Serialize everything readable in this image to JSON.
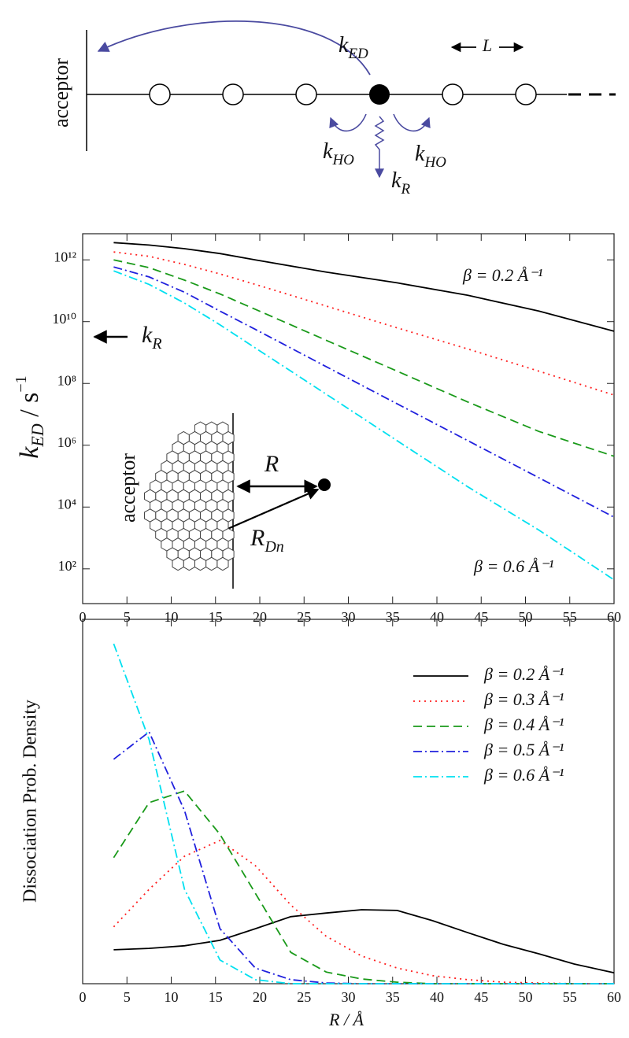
{
  "diagram": {
    "acceptor": "acceptor",
    "k_ED": {
      "symbol": "k",
      "subscript": "ED"
    },
    "L": "L",
    "k_HO_left": {
      "symbol": "k",
      "subscript": "HO"
    },
    "k_HO_right": {
      "symbol": "k",
      "subscript": "HO"
    },
    "k_R": {
      "symbol": "k",
      "subscript": "R"
    }
  },
  "chart_data": [
    {
      "type": "line",
      "log_y": true,
      "legend": false,
      "y_label": {
        "symbol": "k",
        "subscript": "ED",
        "rest": " / s",
        "superscript": "−1"
      },
      "k_R_marker": {
        "symbol": "k",
        "subscript": "R"
      },
      "inset": {
        "acceptor": "acceptor",
        "R": "R",
        "R_Dn": {
          "symbol": "R",
          "subscript": "Dn"
        }
      },
      "annotations": [
        "β = 0.2 Å⁻¹",
        "β = 0.6 Å⁻¹"
      ],
      "x": [
        3.5,
        7.5,
        11.5,
        15.5,
        19.5,
        27.5,
        35.5,
        43.5,
        51.5,
        60
      ],
      "series": [
        {
          "color": "#000000",
          "linestyle": "solid",
          "values": [
            3600000000000.0,
            3000000000000.0,
            2300000000000.0,
            1600000000000.0,
            1000000000000.0,
            400000000000.0,
            180000000000.0,
            71000000000.0,
            22000000000.0,
            4900000000.0
          ]
        },
        {
          "color": "#ff2020",
          "linestyle": "dotted",
          "values": [
            1800000000000.0,
            1300000000000.0,
            710000000000.0,
            350000000000.0,
            160000000000.0,
            32000000000.0,
            6300000000.0,
            1300000000.0,
            250000000.0,
            42000000.0
          ]
        },
        {
          "color": "#1a9a1a",
          "linestyle": "dashed",
          "values": [
            1000000000000.0,
            560000000000.0,
            220000000000.0,
            79000000000.0,
            25000000000.0,
            2500000000.0,
            250000000.0,
            25000000.0,
            2800000.0,
            440000.0
          ]
        },
        {
          "color": "#2020dd",
          "linestyle": "dashdot",
          "values": [
            590000000000.0,
            280000000000.0,
            89000000000.0,
            22000000000.0,
            5600000000.0,
            350000000.0,
            22000000.0,
            1400000.0,
            89000.0,
            4700.0
          ]
        },
        {
          "color": "#00e0f0",
          "linestyle": "dashdot",
          "values": [
            440000000000.0,
            160000000000.0,
            40000000000.0,
            7900000000.0,
            1400000000.0,
            45000000.0,
            1400000.0,
            45000.0,
            1800.0,
            44
          ]
        }
      ],
      "xlim": [
        0,
        60
      ],
      "xticks": [
        0,
        5,
        10,
        15,
        20,
        25,
        30,
        35,
        40,
        45,
        50,
        55,
        60
      ],
      "ylim": [
        7.5,
        7000000000000.0
      ],
      "yticks": [
        {
          "value": 100,
          "label": "10²"
        },
        {
          "value": 10000,
          "label": "10⁴"
        },
        {
          "value": 1000000,
          "label": "10⁶"
        },
        {
          "value": 100000000,
          "label": "10⁸"
        },
        {
          "value": 10000000000,
          "label": "10¹⁰"
        },
        {
          "value": 1000000000000,
          "label": "10¹²"
        }
      ]
    },
    {
      "type": "line",
      "log_y": false,
      "legend": true,
      "legend_position": "upper right",
      "x_label": "R / Å",
      "y_label": "Dissociation Prob. Density",
      "x": [
        3.5,
        7.5,
        11.5,
        15.5,
        19.5,
        23.5,
        27.5,
        31.5,
        35.5,
        39.5,
        43.5,
        47.5,
        51.5,
        55.5,
        60
      ],
      "series": [
        {
          "name": "β = 0.2 Å⁻¹",
          "color": "#000000",
          "linestyle": "solid",
          "values": [
            0.093,
            0.097,
            0.104,
            0.119,
            0.151,
            0.184,
            0.194,
            0.203,
            0.201,
            0.173,
            0.14,
            0.108,
            0.082,
            0.054,
            0.03
          ]
        },
        {
          "name": "β = 0.3 Å⁻¹",
          "color": "#ff2020",
          "linestyle": "dotted",
          "values": [
            0.156,
            0.259,
            0.35,
            0.393,
            0.324,
            0.216,
            0.13,
            0.076,
            0.043,
            0.022,
            0.011,
            0.004,
            0.002,
            0,
            0
          ]
        },
        {
          "name": "β = 0.4 Å⁻¹",
          "color": "#1a9a1a",
          "linestyle": "dashed",
          "values": [
            0.346,
            0.497,
            0.529,
            0.41,
            0.248,
            0.086,
            0.032,
            0.013,
            0.004,
            0,
            0,
            0,
            0,
            0,
            0
          ]
        },
        {
          "name": "β = 0.5 Å⁻¹",
          "color": "#2020dd",
          "linestyle": "dashdot",
          "values": [
            0.616,
            0.691,
            0.475,
            0.151,
            0.043,
            0.011,
            0.002,
            0,
            0,
            0,
            0,
            0,
            0,
            0,
            0
          ]
        },
        {
          "name": "β = 0.6 Å⁻¹",
          "color": "#00e0f0",
          "linestyle": "dashdot",
          "values": [
            0.933,
            0.67,
            0.259,
            0.065,
            0.011,
            0,
            0,
            0,
            0,
            0,
            0,
            0,
            0,
            0,
            0
          ]
        }
      ],
      "xlim": [
        0,
        60
      ],
      "xticks": [
        0,
        5,
        10,
        15,
        20,
        25,
        30,
        35,
        40,
        45,
        50,
        55,
        60
      ],
      "ylim": [
        0,
        1
      ]
    }
  ]
}
